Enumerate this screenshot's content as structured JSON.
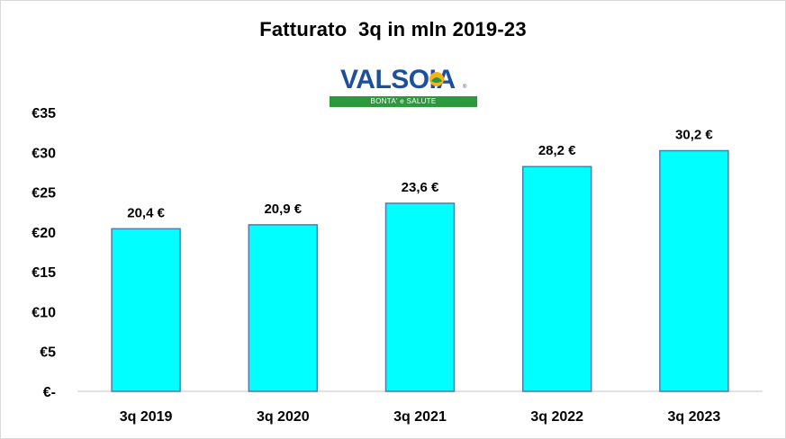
{
  "chart_data": {
    "type": "bar",
    "title": "Fatturato  3q in mln 2019-23",
    "categories": [
      "3q 2019",
      "3q 2020",
      "3q 2021",
      "3q 2022",
      "3q 2023"
    ],
    "values": [
      20.4,
      20.9,
      23.6,
      28.2,
      30.2
    ],
    "data_labels": [
      "20,4 €",
      "20,9 €",
      "23,6 €",
      "28,2 €",
      "30,2 €"
    ],
    "y_ticks": [
      0,
      5,
      10,
      15,
      20,
      25,
      30,
      35
    ],
    "y_tick_labels": [
      "€-",
      "€5",
      "€10",
      "€15",
      "€20",
      "€25",
      "€30",
      "€35"
    ],
    "ylim": [
      0,
      35
    ],
    "xlabel": "",
    "ylabel": "",
    "grid": false,
    "legend": "none",
    "bar_color": "#00ffff",
    "bar_edge_color": "#4a7fb0"
  },
  "logo": {
    "brand": "VALSOIA",
    "tagline": "BONTA' e SALUTE",
    "tm": "®",
    "brand_color": "#1c4f9c",
    "band_color": "#2a9a3c"
  }
}
